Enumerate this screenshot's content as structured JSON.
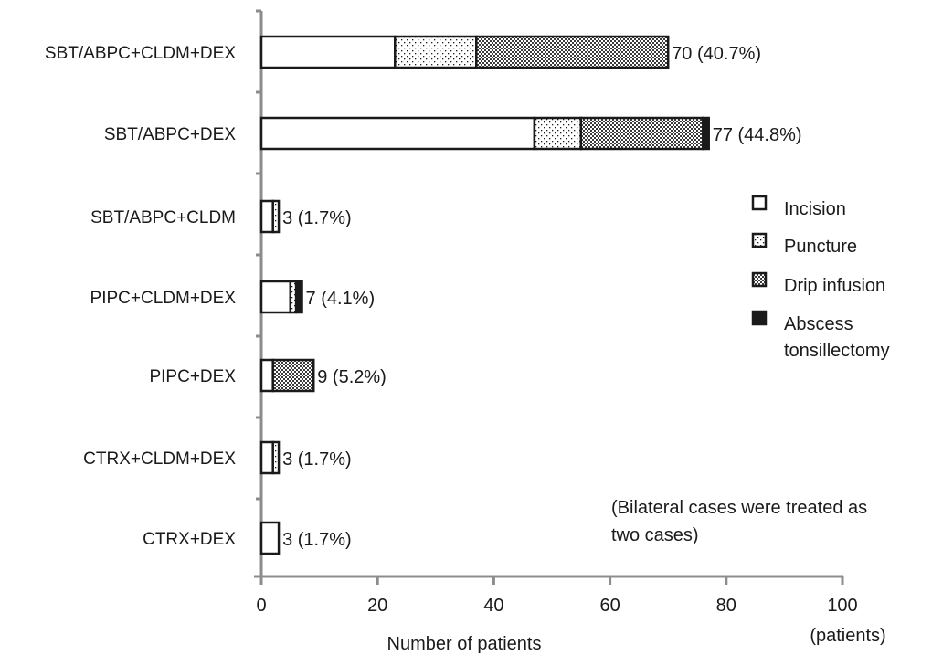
{
  "chart_data": {
    "type": "bar",
    "orientation": "horizontal",
    "stacked": true,
    "categories": [
      "SBT/ABPC+CLDM+DEX",
      "SBT/ABPC+DEX",
      "SBT/ABPC+CLDM",
      "PIPC+CLDM+DEX",
      "PIPC+DEX",
      "CTRX+CLDM+DEX",
      "CTRX+DEX"
    ],
    "series": [
      {
        "name": "Incision",
        "pattern": "plain",
        "values": [
          23,
          47,
          2,
          5,
          2,
          2,
          3
        ]
      },
      {
        "name": "Puncture",
        "pattern": "dots",
        "values": [
          14,
          8,
          1,
          1,
          0,
          1,
          0
        ]
      },
      {
        "name": "Drip infusion",
        "pattern": "crosshatch",
        "values": [
          33,
          21,
          0,
          0,
          7,
          0,
          0
        ]
      },
      {
        "name": "Abscess tonsillectomy",
        "legend_lines": [
          "Abscess",
          "tonsillectomy"
        ],
        "pattern": "solid",
        "values": [
          0,
          1,
          0,
          1,
          0,
          0,
          0
        ]
      }
    ],
    "totals": [
      70,
      77,
      3,
      7,
      9,
      3,
      3
    ],
    "data_labels": [
      "70 (40.7%)",
      "77 (44.8%)",
      "3 (1.7%)",
      "7 (4.1%)",
      "9 (5.2%)",
      "3 (1.7%)",
      "3 (1.7%)"
    ],
    "xlabel": "Number of patients",
    "xunit": "(patients)",
    "xlim": [
      0,
      100
    ],
    "xticks": [
      0,
      20,
      40,
      60,
      80,
      100
    ],
    "grid": false,
    "legend_position": "right",
    "note": [
      "(Bilateral cases were treated as",
      "two cases)"
    ],
    "colors": {
      "outline": "#1a1a1a",
      "axis": "#8c8c8c",
      "fill": "#ffffff"
    }
  }
}
